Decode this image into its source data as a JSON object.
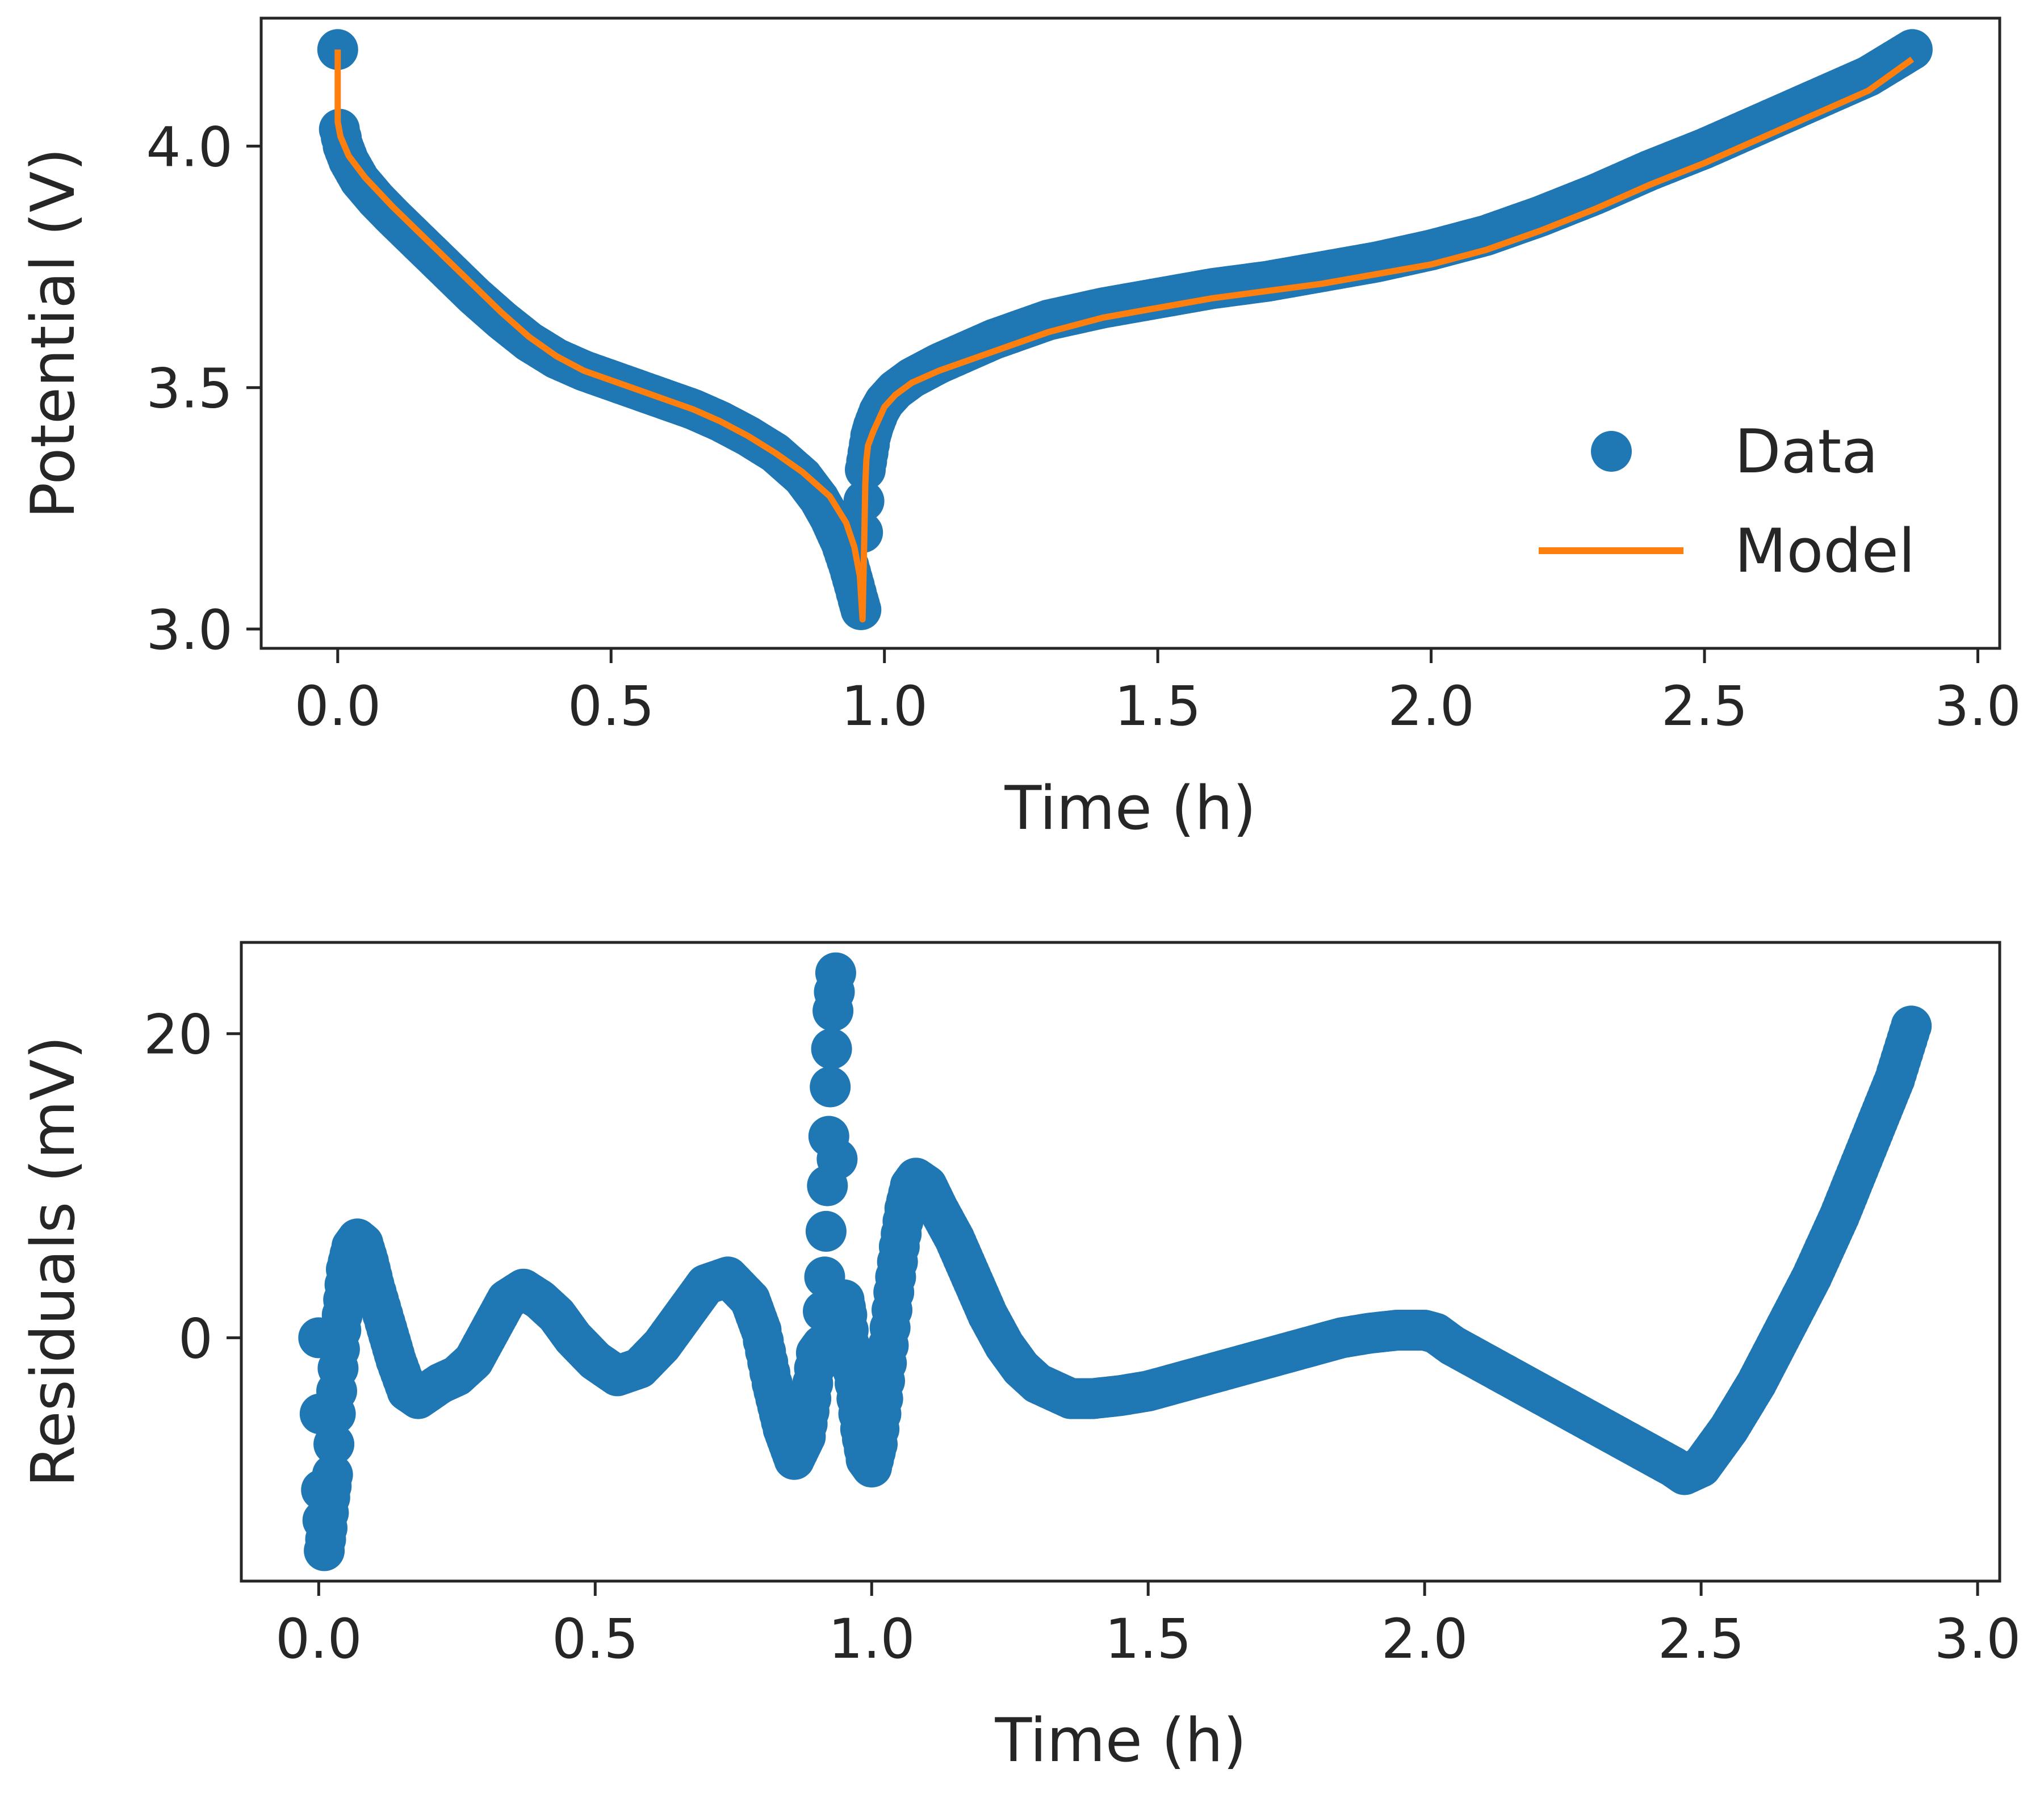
{
  "colors": {
    "data": "#1f77b4",
    "model": "#ff7f0e",
    "axes": "#262626",
    "background": "#ffffff"
  },
  "chart_data": [
    {
      "type": "line",
      "title": "",
      "xlabel": "Time (h)",
      "ylabel": "Potential (V)",
      "xlim": [
        -0.14,
        3.04
      ],
      "ylim": [
        2.96,
        4.265
      ],
      "xticks": [
        {
          "value": 0.0,
          "label": "0.0"
        },
        {
          "value": 0.5,
          "label": "0.5"
        },
        {
          "value": 1.0,
          "label": "1.0"
        },
        {
          "value": 1.5,
          "label": "1.5"
        },
        {
          "value": 2.0,
          "label": "2.0"
        },
        {
          "value": 2.5,
          "label": "2.5"
        },
        {
          "value": 3.0,
          "label": "3.0"
        }
      ],
      "yticks": [
        {
          "value": 3.0,
          "label": "3.0"
        },
        {
          "value": 3.5,
          "label": "3.5"
        },
        {
          "value": 4.0,
          "label": "4.0"
        }
      ],
      "grid": false,
      "legend": {
        "position": "lower-right",
        "entries": [
          "Data",
          "Model"
        ]
      },
      "series": [
        {
          "name": "Data",
          "style": "markers",
          "x": [
            0.0,
            0.003,
            0.01,
            0.02,
            0.04,
            0.07,
            0.1,
            0.15,
            0.2,
            0.25,
            0.3,
            0.35,
            0.4,
            0.45,
            0.5,
            0.55,
            0.6,
            0.65,
            0.7,
            0.75,
            0.8,
            0.85,
            0.88,
            0.9,
            0.92,
            0.935,
            0.945,
            0.952,
            0.957,
            0.96,
            0.965,
            0.97,
            0.975,
            0.98,
            0.99,
            1.0,
            1.02,
            1.05,
            1.1,
            1.15,
            1.2,
            1.3,
            1.4,
            1.5,
            1.6,
            1.7,
            1.8,
            1.9,
            2.0,
            2.1,
            2.2,
            2.3,
            2.4,
            2.5,
            2.6,
            2.7,
            2.8,
            2.88
          ],
          "y": [
            4.2,
            4.035,
            4.0,
            3.97,
            3.93,
            3.89,
            3.855,
            3.8,
            3.745,
            3.69,
            3.64,
            3.595,
            3.56,
            3.535,
            3.515,
            3.495,
            3.475,
            3.455,
            3.43,
            3.4,
            3.365,
            3.315,
            3.27,
            3.23,
            3.18,
            3.13,
            3.09,
            3.06,
            3.04,
            3.2,
            3.33,
            3.365,
            3.4,
            3.42,
            3.45,
            3.47,
            3.495,
            3.52,
            3.55,
            3.575,
            3.6,
            3.64,
            3.665,
            3.685,
            3.705,
            3.72,
            3.74,
            3.76,
            3.785,
            3.815,
            3.855,
            3.9,
            3.95,
            3.995,
            4.045,
            4.095,
            4.145,
            4.2
          ]
        },
        {
          "name": "Model",
          "style": "line",
          "x": [
            0.0,
            0.0,
            0.005,
            0.02,
            0.05,
            0.1,
            0.15,
            0.2,
            0.25,
            0.3,
            0.35,
            0.4,
            0.45,
            0.5,
            0.55,
            0.6,
            0.65,
            0.7,
            0.75,
            0.8,
            0.85,
            0.9,
            0.93,
            0.945,
            0.955,
            0.96,
            0.963,
            0.965,
            0.967,
            0.97,
            0.98,
            0.99,
            1.0,
            1.02,
            1.05,
            1.1,
            1.2,
            1.3,
            1.4,
            1.5,
            1.6,
            1.7,
            1.8,
            1.9,
            2.0,
            2.1,
            2.2,
            2.3,
            2.4,
            2.5,
            2.6,
            2.7,
            2.8,
            2.88
          ],
          "y": [
            4.2,
            4.05,
            4.02,
            3.98,
            3.935,
            3.875,
            3.82,
            3.765,
            3.71,
            3.655,
            3.605,
            3.565,
            3.535,
            3.515,
            3.495,
            3.475,
            3.455,
            3.43,
            3.4,
            3.365,
            3.325,
            3.275,
            3.22,
            3.17,
            3.11,
            3.02,
            3.18,
            3.3,
            3.35,
            3.38,
            3.41,
            3.435,
            3.46,
            3.485,
            3.51,
            3.535,
            3.575,
            3.615,
            3.645,
            3.665,
            3.685,
            3.7,
            3.715,
            3.735,
            3.755,
            3.785,
            3.825,
            3.87,
            3.92,
            3.965,
            4.015,
            4.065,
            4.115,
            4.18
          ]
        }
      ]
    },
    {
      "type": "scatter",
      "title": "",
      "xlabel": "Time (h)",
      "ylabel": "Residuals (mV)",
      "xlim": [
        -0.14,
        3.04
      ],
      "ylim": [
        -16,
        26
      ],
      "xticks": [
        {
          "value": 0.0,
          "label": "0.0"
        },
        {
          "value": 0.5,
          "label": "0.5"
        },
        {
          "value": 1.0,
          "label": "1.0"
        },
        {
          "value": 1.5,
          "label": "1.5"
        },
        {
          "value": 2.0,
          "label": "2.0"
        },
        {
          "value": 2.5,
          "label": "2.5"
        },
        {
          "value": 3.0,
          "label": "3.0"
        }
      ],
      "yticks": [
        {
          "value": 0,
          "label": "0"
        },
        {
          "value": 20,
          "label": "20"
        }
      ],
      "grid": false,
      "series": [
        {
          "name": "Residuals",
          "style": "markers",
          "x": [
            0.0,
            0.005,
            0.01,
            0.015,
            0.02,
            0.025,
            0.03,
            0.035,
            0.04,
            0.045,
            0.05,
            0.06,
            0.07,
            0.08,
            0.09,
            0.1,
            0.12,
            0.14,
            0.16,
            0.18,
            0.2,
            0.22,
            0.25,
            0.28,
            0.31,
            0.34,
            0.37,
            0.4,
            0.43,
            0.46,
            0.5,
            0.54,
            0.58,
            0.62,
            0.66,
            0.7,
            0.74,
            0.78,
            0.8,
            0.82,
            0.84,
            0.86,
            0.88,
            0.89,
            0.9,
            0.91,
            0.915,
            0.92,
            0.925,
            0.93,
            0.935,
            0.94,
            0.945,
            0.95,
            0.955,
            0.96,
            0.97,
            0.98,
            0.99,
            1.0,
            1.01,
            1.02,
            1.03,
            1.04,
            1.05,
            1.06,
            1.07,
            1.08,
            1.1,
            1.12,
            1.15,
            1.18,
            1.21,
            1.24,
            1.27,
            1.3,
            1.33,
            1.36,
            1.4,
            1.45,
            1.5,
            1.55,
            1.6,
            1.65,
            1.7,
            1.75,
            1.8,
            1.85,
            1.9,
            1.95,
            2.0,
            2.02,
            2.05,
            2.1,
            2.15,
            2.2,
            2.25,
            2.3,
            2.35,
            2.4,
            2.45,
            2.47,
            2.5,
            2.55,
            2.6,
            2.65,
            2.7,
            2.75,
            2.8,
            2.85,
            2.88
          ],
          "y": [
            0.0,
            -10.0,
            -14.0,
            -12.5,
            -10.5,
            -9.0,
            -5.0,
            -2.0,
            0.5,
            2.5,
            4.5,
            6.0,
            6.5,
            6.2,
            5.0,
            3.5,
            1.0,
            -1.5,
            -3.5,
            -4.0,
            -3.5,
            -3.0,
            -2.5,
            -1.5,
            0.5,
            2.5,
            3.2,
            2.5,
            1.5,
            0.0,
            -1.5,
            -2.5,
            -2.0,
            -0.5,
            1.5,
            3.5,
            4.0,
            2.5,
            0.5,
            -3.0,
            -6.0,
            -8.0,
            -6.5,
            -4.0,
            -1.0,
            -0.5,
            4.0,
            10.0,
            16.5,
            21.5,
            24.0,
            -0.5,
            1.5,
            2.5,
            1.5,
            -0.5,
            -3.0,
            -6.0,
            -8.0,
            -8.5,
            -7.0,
            -4.0,
            -0.5,
            3.0,
            6.0,
            8.5,
            10.0,
            10.5,
            10.0,
            8.5,
            6.5,
            4.0,
            1.5,
            -0.5,
            -2.0,
            -3.0,
            -3.5,
            -4.0,
            -4.0,
            -3.8,
            -3.5,
            -3.0,
            -2.5,
            -2.0,
            -1.5,
            -1.0,
            -0.5,
            0.0,
            0.3,
            0.5,
            0.5,
            0.3,
            -0.5,
            -1.5,
            -2.5,
            -3.5,
            -4.5,
            -5.5,
            -6.5,
            -7.5,
            -8.5,
            -9.0,
            -8.5,
            -6.0,
            -3.0,
            0.5,
            4.0,
            8.0,
            12.5,
            17.0,
            20.5
          ]
        }
      ]
    }
  ]
}
